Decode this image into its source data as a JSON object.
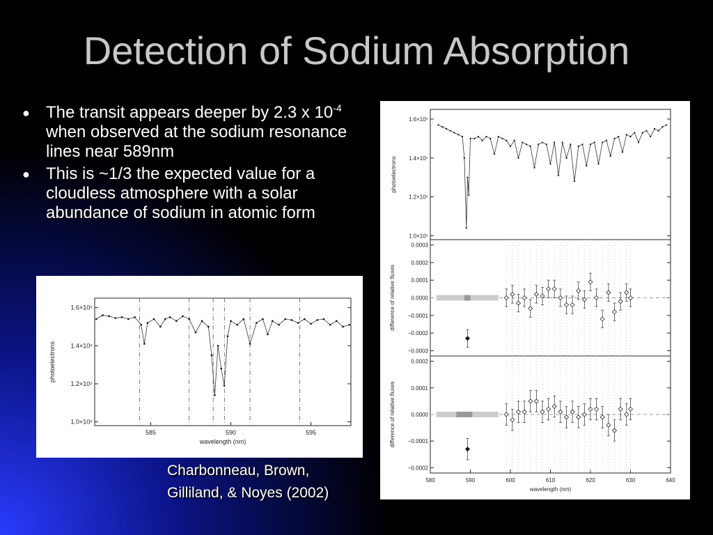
{
  "slide": {
    "title": "Detection of Sodium Absorption",
    "bullets": [
      {
        "before": "The transit appears deeper by 2.3 x 10",
        "sup": "-4",
        "after": " when observed at the sodium resonance lines near 589nm"
      },
      {
        "before": "This is ~1/3 the expected value for a cloudless atmosphere with a solar abundance of sodium in atomic form",
        "sup": "",
        "after": ""
      }
    ],
    "citation_line1": "Charbonneau, Brown,",
    "citation_line2": "Gilliland, & Noyes (2002)"
  },
  "chart_data": [
    {
      "type": "line",
      "ylabel": "photoelectrons",
      "xlabel": "wavelength (nm)",
      "xlim": [
        581.5,
        597.5
      ],
      "ylim": [
        98000,
        165000
      ],
      "x_ticks": [
        585,
        590,
        595
      ],
      "x_tick_labels": [
        "585",
        "590",
        "595"
      ],
      "y_ticks": [
        100000,
        120000,
        140000,
        160000
      ],
      "y_tick_labels": [
        "1.0×10⁵",
        "1.2×10⁵",
        "1.4×10⁵",
        "1.6×10⁵"
      ],
      "reference_lines": [
        584.3,
        587.4,
        588.9,
        589.6,
        591.2,
        594.3
      ],
      "series": [
        {
          "x": [
            581.6,
            582.0,
            582.4,
            582.8,
            583.2,
            583.6,
            584.0,
            584.4,
            584.6,
            584.8,
            585.2,
            585.6,
            585.9,
            586.2,
            586.6,
            587.0,
            587.4,
            587.8,
            588.2,
            588.6,
            588.8,
            588.995,
            589.2,
            589.4,
            589.592,
            589.8,
            590.0,
            590.4,
            590.8,
            591.2,
            591.6,
            592.0,
            592.3,
            592.6,
            593.0,
            593.4,
            593.8,
            594.2,
            594.6,
            595.0,
            595.4,
            595.8,
            596.2,
            596.6,
            597.0,
            597.4
          ],
          "y": [
            154000,
            156000,
            155500,
            154500,
            155000,
            154000,
            155000,
            151000,
            141000,
            152000,
            154000,
            150000,
            154000,
            155000,
            153000,
            155500,
            154000,
            147000,
            153000,
            150000,
            135000,
            114000,
            140000,
            128000,
            119000,
            145000,
            153000,
            151000,
            154000,
            141000,
            152000,
            154000,
            146000,
            153000,
            151000,
            154000,
            153500,
            152000,
            154000,
            151500,
            153500,
            154000,
            151000,
            153000,
            150000,
            151000
          ]
        }
      ]
    },
    {
      "type": "line",
      "ylabel": "photoelectrons",
      "xlim": [
        580,
        640
      ],
      "ylim": [
        98000,
        165000
      ],
      "y_ticks": [
        100000,
        120000,
        140000,
        160000
      ],
      "y_tick_labels": [
        "1.0×10⁵",
        "1.2×10⁵",
        "1.4×10⁵",
        "1.6×10⁵"
      ],
      "series": [
        {
          "x": [
            582,
            583,
            584,
            585,
            586,
            587,
            588,
            588.5,
            589,
            589.3,
            589.6,
            590,
            591,
            592,
            593,
            594,
            595,
            596,
            597,
            598,
            599,
            600,
            601,
            602,
            603,
            604,
            605,
            606,
            607,
            608,
            609,
            610,
            611,
            612,
            613,
            614,
            615,
            616,
            617,
            618,
            619,
            620,
            621,
            622,
            623,
            624,
            625,
            626,
            627,
            628,
            629,
            630,
            631,
            632,
            633,
            634,
            635,
            636,
            637,
            638,
            639
          ],
          "y": [
            157000,
            156000,
            155000,
            154000,
            153000,
            152000,
            151000,
            140000,
            104000,
            130000,
            121000,
            150000,
            150000,
            151000,
            149000,
            151000,
            150000,
            142000,
            151000,
            150000,
            149000,
            146000,
            149000,
            140000,
            148000,
            147000,
            146000,
            135000,
            147000,
            148000,
            147000,
            137000,
            148000,
            131000,
            148000,
            140000,
            147000,
            128000,
            146000,
            147000,
            136000,
            147000,
            148000,
            137000,
            148000,
            149000,
            141000,
            150000,
            151000,
            143000,
            152000,
            151000,
            153000,
            148000,
            153000,
            154000,
            151000,
            155000,
            154000,
            156000,
            157000
          ]
        }
      ]
    },
    {
      "type": "scatter",
      "ylabel": "difference of relative fluxes",
      "xlim": [
        580,
        640
      ],
      "ylim": [
        -0.00033,
        0.00033
      ],
      "y_ticks": [
        -0.0003,
        -0.0002,
        -0.0001,
        0.0,
        0.0001,
        0.0002,
        0.0003
      ],
      "y_tick_labels": [
        "−0.0003",
        "−0.0002",
        "−0.0001",
        "0.0000",
        "0.0001",
        "0.0002",
        "0.0003"
      ],
      "bands": [
        {
          "x0": 581.5,
          "x1": 597,
          "shade": "light"
        },
        {
          "x0": 588.5,
          "x1": 590,
          "shade": "dark"
        }
      ],
      "series": [
        {
          "x": [
            589.3
          ],
          "y": [
            -0.00023
          ],
          "err": [
            5e-05
          ],
          "marker": "filled"
        },
        {
          "x": [
            599,
            600.5,
            602,
            603.5,
            605,
            606.5,
            608,
            609.5,
            611,
            612.5,
            614,
            615.5,
            617,
            618.5,
            620,
            621.5,
            623,
            624.5,
            626,
            627.5,
            629,
            630
          ],
          "y": [
            0.0,
            2e-05,
            -3e-05,
            0.0,
            -6e-05,
            2e-05,
            1e-05,
            5e-05,
            5e-05,
            0.0,
            -4e-05,
            -4e-05,
            4e-05,
            -1e-05,
            9e-05,
            0.0,
            -0.00012,
            3e-05,
            -8e-05,
            -2e-05,
            3e-05,
            0.0
          ],
          "err": [
            5e-05,
            5e-05,
            5e-05,
            5e-05,
            5e-05,
            5e-05,
            5e-05,
            5e-05,
            5e-05,
            5e-05,
            5e-05,
            5e-05,
            5e-05,
            5e-05,
            5e-05,
            5e-05,
            5e-05,
            5e-05,
            5e-05,
            5e-05,
            5e-05,
            5e-05
          ],
          "marker": "open"
        }
      ]
    },
    {
      "type": "scatter",
      "ylabel": "difference of relative fluxes",
      "xlabel": "wavelength (nm)",
      "xlim": [
        580,
        640
      ],
      "ylim": [
        -0.00022,
        0.00022
      ],
      "x_ticks": [
        580,
        590,
        600,
        610,
        620,
        630,
        640
      ],
      "x_tick_labels": [
        "580",
        "590",
        "600",
        "610",
        "620",
        "630",
        "640"
      ],
      "y_ticks": [
        -0.0002,
        -0.0001,
        0.0,
        0.0001,
        0.0002
      ],
      "y_tick_labels": [
        "−0.0002",
        "−0.0001",
        "0.0000",
        "0.0001",
        "0.0002"
      ],
      "bands": [
        {
          "x0": 581.5,
          "x1": 597,
          "shade": "light"
        },
        {
          "x0": 586.5,
          "x1": 590.5,
          "shade": "dark"
        }
      ],
      "series": [
        {
          "x": [
            589.3
          ],
          "y": [
            -0.00013
          ],
          "err": [
            4e-05
          ],
          "marker": "filled"
        },
        {
          "x": [
            599,
            600.5,
            602,
            603.5,
            605,
            606.5,
            608,
            609.5,
            611,
            612.5,
            614,
            615.5,
            617,
            618.5,
            620,
            621.5,
            623,
            624.5,
            626,
            627.5,
            629,
            630
          ],
          "y": [
            0.0,
            -2e-05,
            1e-05,
            1e-05,
            5e-05,
            5e-05,
            1e-05,
            2e-05,
            3e-05,
            1e-05,
            -1e-05,
            1e-05,
            -1e-05,
            0.0,
            2e-05,
            2e-05,
            -1e-05,
            -4e-05,
            -6e-05,
            2e-05,
            0.0,
            2e-05
          ],
          "err": [
            4e-05,
            4e-05,
            4e-05,
            4e-05,
            4e-05,
            4e-05,
            4e-05,
            4e-05,
            4e-05,
            4e-05,
            4e-05,
            4e-05,
            4e-05,
            4e-05,
            4e-05,
            4e-05,
            4e-05,
            4e-05,
            4e-05,
            4e-05,
            4e-05,
            4e-05
          ],
          "marker": "open"
        }
      ]
    }
  ]
}
